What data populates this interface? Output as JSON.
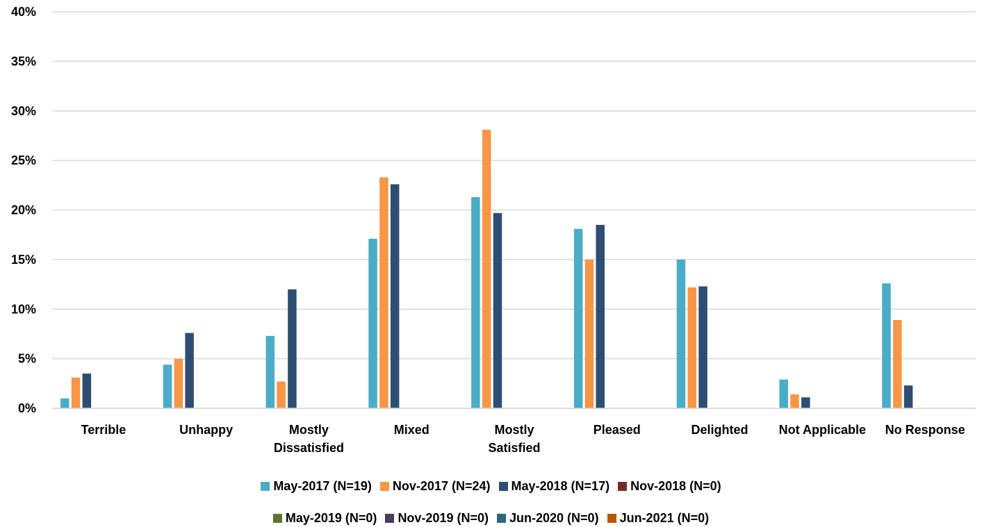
{
  "chart_data": {
    "type": "bar",
    "categories": [
      "Terrible",
      "Unhappy",
      "Mostly Dissatisfied",
      "Mixed",
      "Mostly Satisfied",
      "Pleased",
      "Delighted",
      "Not Applicable",
      "No Response"
    ],
    "category_lines": [
      [
        "Terrible"
      ],
      [
        "Unhappy"
      ],
      [
        "Mostly",
        "Dissatisfied"
      ],
      [
        "Mixed"
      ],
      [
        "Mostly",
        "Satisfied"
      ],
      [
        "Pleased"
      ],
      [
        "Delighted"
      ],
      [
        "Not Applicable"
      ],
      [
        "No Response"
      ]
    ],
    "series": [
      {
        "name": "May-2017 (N=19)",
        "color": "#4BACC6",
        "values": [
          1.0,
          4.4,
          7.3,
          17.1,
          21.3,
          18.1,
          15.0,
          2.9,
          12.6
        ]
      },
      {
        "name": "Nov-2017 (N=24)",
        "color": "#F79646",
        "values": [
          3.1,
          5.0,
          2.7,
          23.3,
          28.1,
          15.0,
          12.2,
          1.4,
          8.9
        ]
      },
      {
        "name": "May-2018 (N=17)",
        "color": "#2E4D73",
        "values": [
          3.5,
          7.6,
          12.0,
          22.6,
          19.7,
          18.5,
          12.3,
          1.1,
          2.3
        ]
      },
      {
        "name": "Nov-2018 (N=0)",
        "color": "#772C2A",
        "values": [
          0,
          0,
          0,
          0,
          0,
          0,
          0,
          0,
          0
        ]
      },
      {
        "name": "May-2019 (N=0)",
        "color": "#5F7530",
        "values": [
          0,
          0,
          0,
          0,
          0,
          0,
          0,
          0,
          0
        ]
      },
      {
        "name": "Nov-2019 (N=0)",
        "color": "#4D3B62",
        "values": [
          0,
          0,
          0,
          0,
          0,
          0,
          0,
          0,
          0
        ]
      },
      {
        "name": "Jun-2020 (N=0)",
        "color": "#276A7C",
        "values": [
          0,
          0,
          0,
          0,
          0,
          0,
          0,
          0,
          0
        ]
      },
      {
        "name": "Jun-2021 (N=0)",
        "color": "#B65708",
        "values": [
          0,
          0,
          0,
          0,
          0,
          0,
          0,
          0,
          0
        ]
      }
    ],
    "y_ticks": [
      "0%",
      "5%",
      "10%",
      "15%",
      "20%",
      "25%",
      "30%",
      "35%",
      "40%"
    ],
    "ylim": [
      0,
      40
    ],
    "title": "",
    "xlabel": "",
    "ylabel": "",
    "grid": true,
    "legend_position": "bottom"
  }
}
